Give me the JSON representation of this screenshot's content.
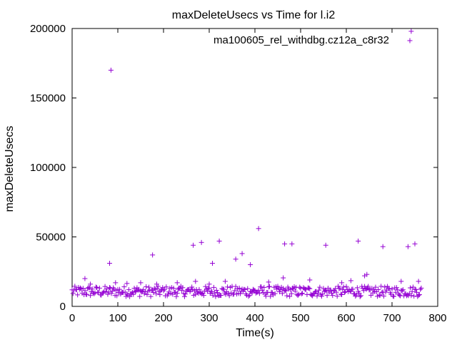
{
  "chart_data": {
    "type": "scatter",
    "title": "maxDeleteUsecs vs Time for l.i2",
    "xlabel": "Time(s)",
    "ylabel": "maxDeleteUsecs",
    "xlim": [
      0,
      800
    ],
    "ylim": [
      0,
      200000
    ],
    "xticks": [
      0,
      100,
      200,
      300,
      400,
      500,
      600,
      700,
      800
    ],
    "yticks": [
      0,
      50000,
      100000,
      150000,
      200000
    ],
    "marker": "+",
    "grid": false,
    "legend": "top-right",
    "series": [
      {
        "name": "ma100605_rel_withdbg.cz12a_c8r32",
        "color": "#9400d3",
        "baseline": {
          "x_start": 0,
          "x_end": 765,
          "x_step": 2,
          "y_min": 7000,
          "y_max": 14500
        },
        "points": [
          [
            28,
            20000
          ],
          [
            40,
            16000
          ],
          [
            82,
            31000
          ],
          [
            85,
            170000
          ],
          [
            95,
            17000
          ],
          [
            120,
            16500
          ],
          [
            150,
            17000
          ],
          [
            176,
            37000
          ],
          [
            185,
            16000
          ],
          [
            230,
            17000
          ],
          [
            265,
            44000
          ],
          [
            270,
            18000
          ],
          [
            283,
            46000
          ],
          [
            300,
            16000
          ],
          [
            307,
            31000
          ],
          [
            322,
            47000
          ],
          [
            335,
            18000
          ],
          [
            358,
            34000
          ],
          [
            372,
            38000
          ],
          [
            390,
            30000
          ],
          [
            408,
            56000
          ],
          [
            430,
            17500
          ],
          [
            462,
            20500
          ],
          [
            465,
            45000
          ],
          [
            481,
            45000
          ],
          [
            520,
            19000
          ],
          [
            555,
            44000
          ],
          [
            590,
            17000
          ],
          [
            610,
            18500
          ],
          [
            626,
            47000
          ],
          [
            640,
            22000
          ],
          [
            645,
            23000
          ],
          [
            680,
            43000
          ],
          [
            720,
            18000
          ],
          [
            735,
            43000
          ],
          [
            742,
            198000
          ],
          [
            750,
            45000
          ],
          [
            758,
            18000
          ]
        ]
      }
    ]
  }
}
